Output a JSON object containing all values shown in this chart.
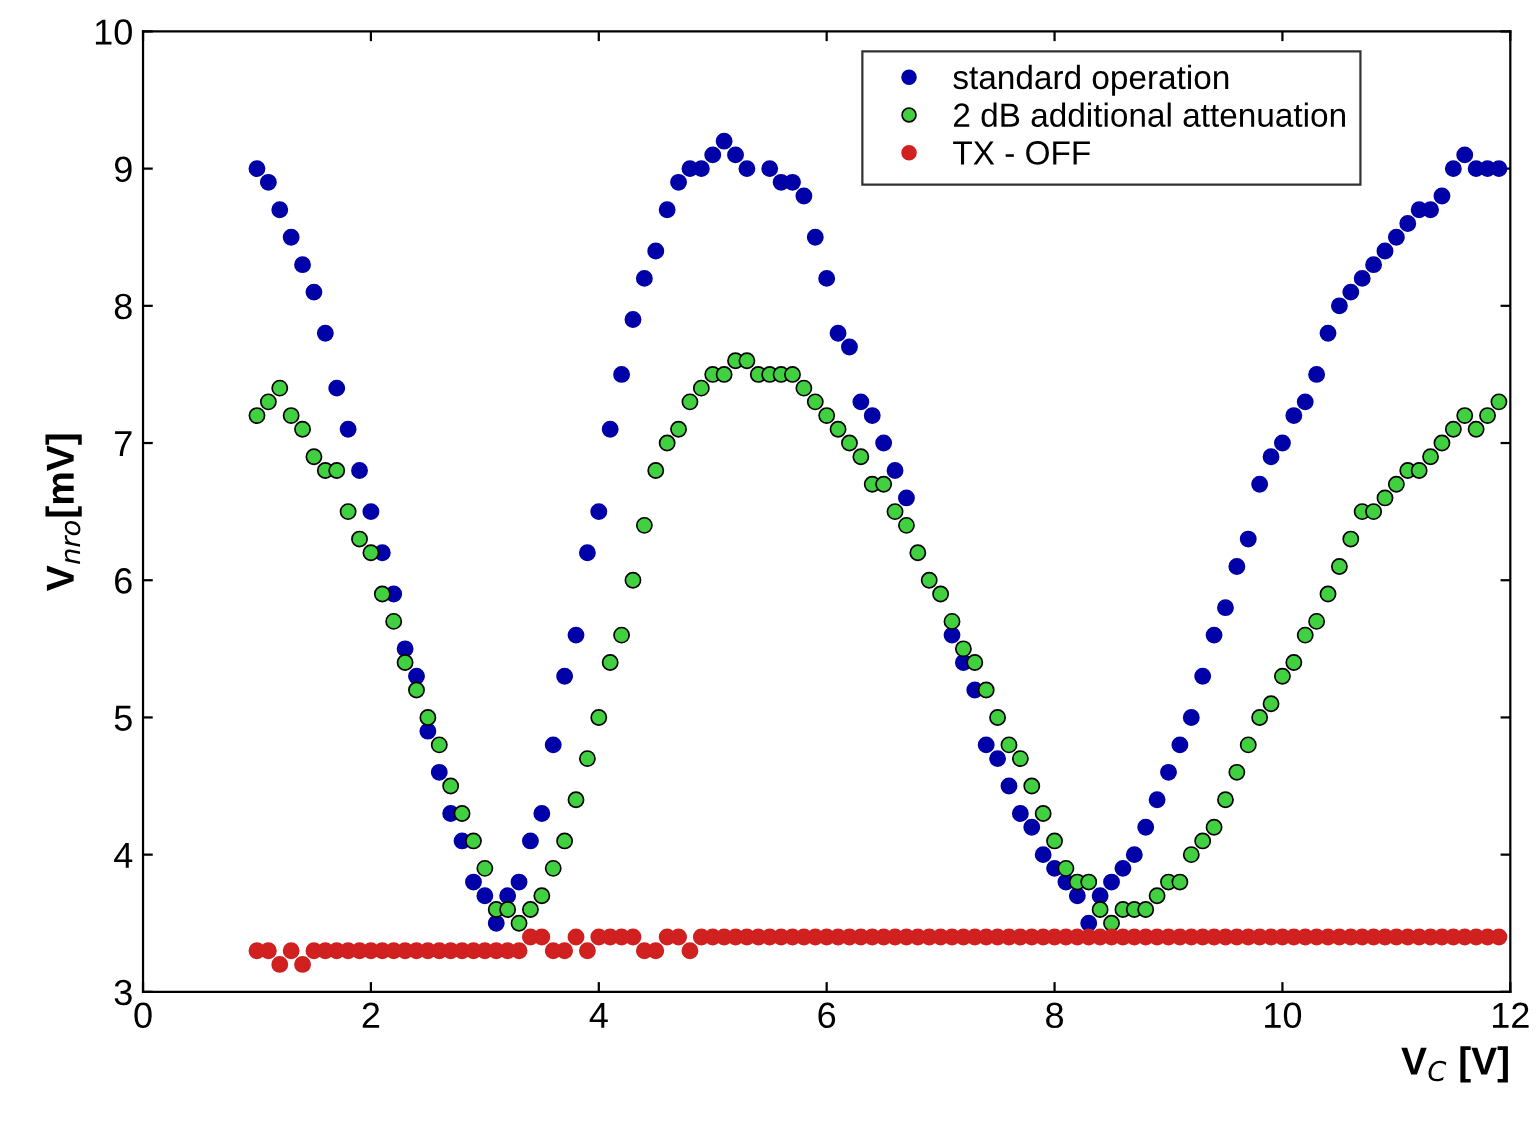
{
  "chart_data": {
    "type": "scatter",
    "xlabel": "V$_{C}$ [V]",
    "ylabel": "V$_{nro}$[mV]",
    "xlim": [
      0,
      12
    ],
    "ylim": [
      3,
      10
    ],
    "xticks": [
      0,
      2,
      4,
      6,
      8,
      10,
      12
    ],
    "yticks": [
      3,
      4,
      5,
      6,
      7,
      8,
      9,
      10
    ],
    "grid": false,
    "legend": "top right",
    "marker": "circle",
    "x": [
      1.0,
      1.1,
      1.2,
      1.3,
      1.4,
      1.5,
      1.6,
      1.7,
      1.8,
      1.9,
      2.0,
      2.1,
      2.2,
      2.3,
      2.4,
      2.5,
      2.6,
      2.7,
      2.8,
      2.9,
      3.0,
      3.1,
      3.2,
      3.3,
      3.4,
      3.5,
      3.6,
      3.7,
      3.8,
      3.9,
      4.0,
      4.1,
      4.2,
      4.3,
      4.4,
      4.5,
      4.6,
      4.7,
      4.8,
      4.9,
      5.0,
      5.1,
      5.2,
      5.3,
      5.4,
      5.5,
      5.6,
      5.7,
      5.8,
      5.9,
      6.0,
      6.1,
      6.2,
      6.3,
      6.4,
      6.5,
      6.6,
      6.7,
      6.8,
      6.9,
      7.0,
      7.1,
      7.2,
      7.3,
      7.4,
      7.5,
      7.6,
      7.7,
      7.8,
      7.9,
      8.0,
      8.1,
      8.2,
      8.3,
      8.4,
      8.5,
      8.6,
      8.7,
      8.8,
      8.9,
      9.0,
      9.1,
      9.2,
      9.3,
      9.4,
      9.5,
      9.6,
      9.7,
      9.8,
      9.9,
      10.0,
      10.1,
      10.2,
      10.3,
      10.4,
      10.5,
      10.6,
      10.7,
      10.8,
      10.9,
      11.0,
      11.1,
      11.2,
      11.3,
      11.4,
      11.5,
      11.6,
      11.7,
      11.8,
      11.9
    ],
    "series": [
      {
        "name": "standard operation",
        "color": "#0000a8",
        "values": [
          9.0,
          8.9,
          8.7,
          8.5,
          8.3,
          8.1,
          7.8,
          7.4,
          7.1,
          6.8,
          6.5,
          6.2,
          5.9,
          5.5,
          5.3,
          4.9,
          4.6,
          4.3,
          4.1,
          3.8,
          3.7,
          3.5,
          3.7,
          3.8,
          4.1,
          4.3,
          4.8,
          5.3,
          5.6,
          6.2,
          6.5,
          7.1,
          7.5,
          7.9,
          8.2,
          8.4,
          8.7,
          8.9,
          9.0,
          9.0,
          9.1,
          9.2,
          9.1,
          9.0,
          null,
          9.0,
          8.9,
          8.9,
          8.8,
          8.5,
          8.2,
          7.8,
          7.7,
          7.3,
          7.2,
          7.0,
          6.8,
          6.6,
          null,
          null,
          null,
          5.6,
          5.4,
          5.2,
          4.8,
          4.7,
          4.5,
          4.3,
          4.2,
          4.0,
          3.9,
          3.8,
          3.7,
          3.5,
          3.7,
          3.8,
          3.9,
          4.0,
          4.2,
          4.4,
          4.6,
          4.8,
          5.0,
          5.3,
          5.6,
          5.8,
          6.1,
          6.3,
          6.7,
          6.9,
          7.0,
          7.2,
          7.3,
          7.5,
          7.8,
          8.0,
          8.1,
          8.2,
          8.3,
          8.4,
          8.5,
          8.6,
          8.7,
          8.7,
          8.8,
          9.0,
          9.1,
          9.0,
          9.0,
          9.0
        ]
      },
      {
        "name": "2 dB additional attenuation",
        "color": "#40d040",
        "values": [
          7.2,
          7.3,
          7.4,
          7.2,
          7.1,
          6.9,
          6.8,
          6.8,
          6.5,
          6.3,
          6.2,
          5.9,
          5.7,
          5.4,
          5.2,
          5.0,
          4.8,
          4.5,
          4.3,
          4.1,
          3.9,
          3.6,
          3.6,
          3.5,
          3.6,
          3.7,
          3.9,
          4.1,
          4.4,
          4.7,
          5.0,
          5.4,
          5.6,
          6.0,
          6.4,
          6.8,
          7.0,
          7.1,
          7.3,
          7.4,
          7.5,
          7.5,
          7.6,
          7.6,
          7.5,
          7.5,
          7.5,
          7.5,
          7.4,
          7.3,
          7.2,
          7.1,
          7.0,
          6.9,
          6.7,
          6.7,
          6.5,
          6.4,
          6.2,
          6.0,
          5.9,
          5.7,
          5.5,
          5.4,
          5.2,
          5.0,
          4.8,
          4.7,
          4.5,
          4.3,
          4.1,
          3.9,
          3.8,
          3.8,
          3.6,
          3.5,
          3.6,
          3.6,
          3.6,
          3.7,
          3.8,
          3.8,
          4.0,
          4.1,
          4.2,
          4.4,
          4.6,
          4.8,
          5.0,
          5.1,
          5.3,
          5.4,
          5.6,
          5.7,
          5.9,
          6.1,
          6.3,
          6.5,
          6.5,
          6.6,
          6.7,
          6.8,
          6.8,
          6.9,
          7.0,
          7.1,
          7.2,
          7.1,
          7.2,
          7.3
        ]
      },
      {
        "name": "TX - OFF",
        "color": "#d02020",
        "values": [
          3.3,
          3.3,
          3.2,
          3.3,
          3.2,
          3.3,
          3.3,
          3.3,
          3.3,
          3.3,
          3.3,
          3.3,
          3.3,
          3.3,
          3.3,
          3.3,
          3.3,
          3.3,
          3.3,
          3.3,
          3.3,
          3.3,
          3.3,
          3.3,
          3.4,
          3.4,
          3.3,
          3.3,
          3.4,
          3.3,
          3.4,
          3.4,
          3.4,
          3.4,
          3.3,
          3.3,
          3.4,
          3.4,
          3.3,
          3.4,
          3.4,
          3.4,
          3.4,
          3.4,
          3.4,
          3.4,
          3.4,
          3.4,
          3.4,
          3.4,
          3.4,
          3.4,
          3.4,
          3.4,
          3.4,
          3.4,
          3.4,
          3.4,
          3.4,
          3.4,
          3.4,
          3.4,
          3.4,
          3.4,
          3.4,
          3.4,
          3.4,
          3.4,
          3.4,
          3.4,
          3.4,
          3.4,
          3.4,
          3.4,
          3.4,
          3.4,
          3.4,
          3.4,
          3.4,
          3.4,
          3.4,
          3.4,
          3.4,
          3.4,
          3.4,
          3.4,
          3.4,
          3.4,
          3.4,
          3.4,
          3.4,
          3.4,
          3.4,
          3.4,
          3.4,
          3.4,
          3.4,
          3.4,
          3.4,
          3.4,
          3.4,
          3.4,
          3.4,
          3.4,
          3.4,
          3.4,
          3.4,
          3.4,
          3.4,
          3.4
        ]
      }
    ]
  }
}
